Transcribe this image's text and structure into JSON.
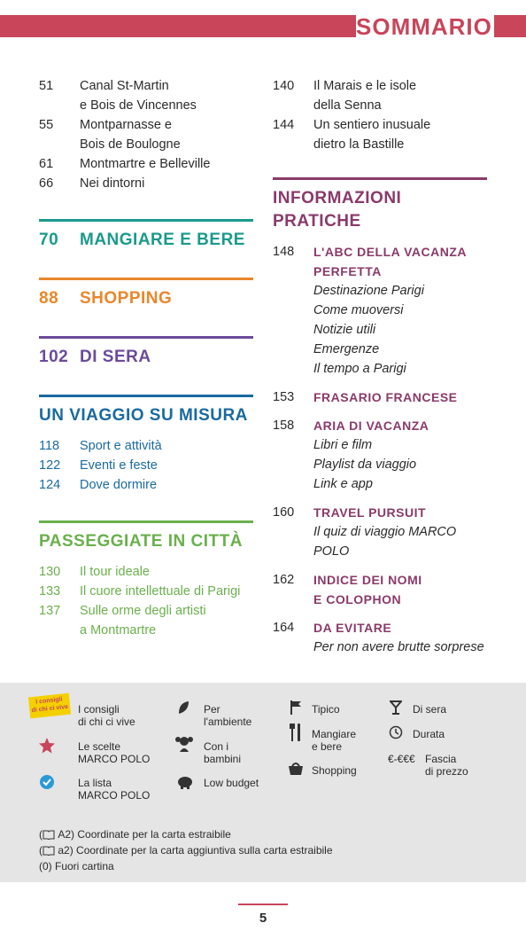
{
  "header": {
    "title": "SOMMARIO"
  },
  "left_column": {
    "items": [
      {
        "page": "51",
        "lines": [
          "Canal St-Martin",
          "e Bois de Vincennes"
        ]
      },
      {
        "page": "55",
        "lines": [
          "Montparnasse e",
          "Bois de Boulogne"
        ]
      },
      {
        "page": "61",
        "lines": [
          "Montmartre e Belleville"
        ]
      },
      {
        "page": "66",
        "lines": [
          "Nei dintorni"
        ]
      }
    ],
    "sections": [
      {
        "page": "70",
        "title": "MANGIARE E BERE"
      },
      {
        "page": "88",
        "title": "SHOPPING"
      },
      {
        "page": "102",
        "title": "DI SERA"
      },
      {
        "title": "UN VIAGGIO SU MISURA",
        "items": [
          {
            "page": "118",
            "lines": [
              "Sport e attività"
            ]
          },
          {
            "page": "122",
            "lines": [
              "Eventi e feste"
            ]
          },
          {
            "page": "124",
            "lines": [
              "Dove dormire"
            ]
          }
        ]
      },
      {
        "title": "PASSEGGIATE IN CITTÀ",
        "items": [
          {
            "page": "130",
            "lines": [
              "Il tour ideale"
            ]
          },
          {
            "page": "133",
            "lines": [
              "Il cuore intellettuale di Parigi"
            ]
          },
          {
            "page": "137",
            "lines": [
              "Sulle orme degli artisti",
              "a Montmartre"
            ]
          }
        ]
      }
    ]
  },
  "right_column": {
    "items": [
      {
        "page": "140",
        "lines": [
          "Il Marais e le isole",
          "della Senna"
        ]
      },
      {
        "page": "144",
        "lines": [
          "Un sentiero inusuale",
          "dietro la Bastille"
        ]
      }
    ],
    "sections": [
      {
        "title": "INFORMAZIONI PRATICHE",
        "entries": [
          {
            "page": "148",
            "heading": [
              "L'ABC DELLA VACANZA",
              "PERFETTA"
            ],
            "subs": [
              "Destinazione Parigi",
              "Come muoversi",
              "Notizie utili",
              "Emergenze",
              "Il tempo a Parigi"
            ]
          },
          {
            "page": "153",
            "heading": [
              "FRASARIO FRANCESE"
            ]
          },
          {
            "page": "158",
            "heading": [
              "ARIA DI VACANZA"
            ],
            "subs": [
              "Libri e film",
              "Playlist da viaggio",
              "Link e app"
            ]
          },
          {
            "page": "160",
            "heading": [
              "TRAVEL PURSUIT"
            ],
            "subs": [
              "Il quiz di viaggio MARCO POLO"
            ]
          },
          {
            "page": "162",
            "heading": [
              "INDICE DEI NOMI",
              "E COLOPHON"
            ]
          },
          {
            "page": "164",
            "heading": [
              "DA EVITARE"
            ],
            "subs": [
              "Per non avere brutte sorprese"
            ]
          }
        ]
      }
    ]
  },
  "legend": {
    "badge": [
      "I consigli",
      "di chi ci vive"
    ],
    "items": [
      {
        "lines": [
          "I consigli",
          "di chi ci vive"
        ]
      },
      {
        "lines": [
          "Le scelte",
          "MARCO POLO"
        ]
      },
      {
        "lines": [
          "La lista",
          "MARCO POLO"
        ]
      },
      {
        "lines": [
          "Per",
          "l'ambiente"
        ]
      },
      {
        "lines": [
          "Con i",
          "bambini"
        ]
      },
      {
        "lines": [
          "Low budget"
        ]
      },
      {
        "lines": [
          "Tipico"
        ]
      },
      {
        "lines": [
          "Mangiare",
          "e bere"
        ]
      },
      {
        "lines": [
          "Shopping"
        ]
      },
      {
        "lines": [
          "Di sera"
        ]
      },
      {
        "lines": [
          "Durata"
        ]
      },
      {
        "symbol": "€-€€€",
        "lines": [
          "Fascia",
          "di prezzo"
        ]
      }
    ],
    "notes": [
      {
        "prefix": "(",
        "text": "A2) Coordinate per la carta estraibile"
      },
      {
        "prefix": "(",
        "text": "a2) Coordinate per la carta aggiuntiva sulla carta estraibile"
      },
      {
        "text": "(0) Fuori cartina"
      }
    ]
  },
  "footer": {
    "page": "5"
  }
}
